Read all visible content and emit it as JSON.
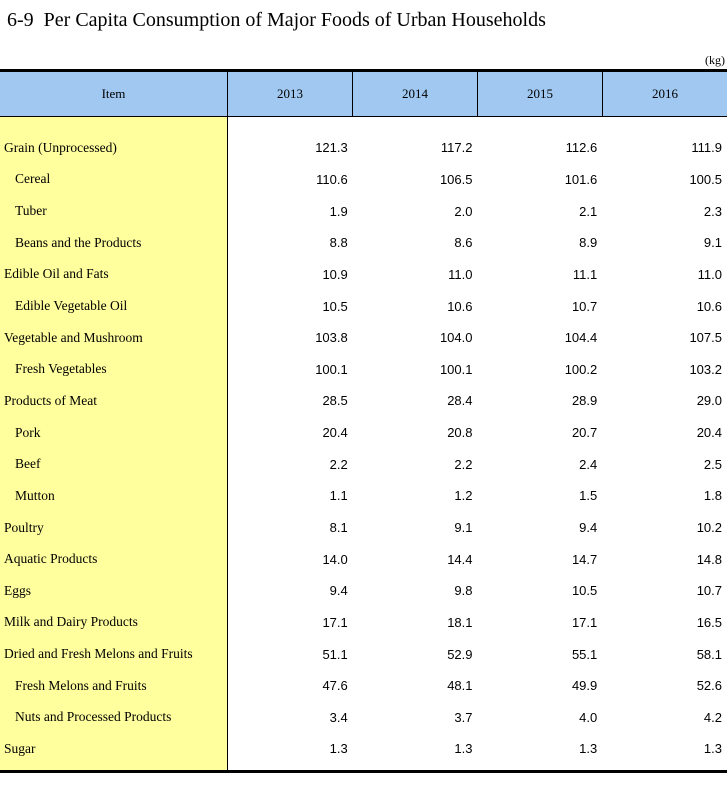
{
  "title": "6-9  Per Capita Consumption of Major Foods of Urban Households",
  "unit": "(kg)",
  "colors": {
    "header_bg": "#A0C8F0",
    "stub_bg": "#FFFF9E",
    "border": "#000000"
  },
  "table": {
    "columns": [
      "Item",
      "2013",
      "2014",
      "2015",
      "2016"
    ],
    "rows": [
      {
        "label": "Grain (Unprocessed)",
        "indent": false,
        "values": [
          "121.3",
          "117.2",
          "112.6",
          "111.9"
        ]
      },
      {
        "label": "Cereal",
        "indent": true,
        "values": [
          "110.6",
          "106.5",
          "101.6",
          "100.5"
        ]
      },
      {
        "label": "Tuber",
        "indent": true,
        "values": [
          "1.9",
          "2.0",
          "2.1",
          "2.3"
        ]
      },
      {
        "label": "Beans and the Products",
        "indent": true,
        "values": [
          "8.8",
          "8.6",
          "8.9",
          "9.1"
        ]
      },
      {
        "label": "Edible Oil and Fats",
        "indent": false,
        "values": [
          "10.9",
          "11.0",
          "11.1",
          "11.0"
        ]
      },
      {
        "label": "Edible Vegetable Oil",
        "indent": true,
        "values": [
          "10.5",
          "10.6",
          "10.7",
          "10.6"
        ]
      },
      {
        "label": "Vegetable and Mushroom",
        "indent": false,
        "values": [
          "103.8",
          "104.0",
          "104.4",
          "107.5"
        ]
      },
      {
        "label": "Fresh Vegetables",
        "indent": true,
        "values": [
          "100.1",
          "100.1",
          "100.2",
          "103.2"
        ]
      },
      {
        "label": "Products of Meat",
        "indent": false,
        "values": [
          "28.5",
          "28.4",
          "28.9",
          "29.0"
        ]
      },
      {
        "label": "Pork",
        "indent": true,
        "values": [
          "20.4",
          "20.8",
          "20.7",
          "20.4"
        ]
      },
      {
        "label": "Beef",
        "indent": true,
        "values": [
          "2.2",
          "2.2",
          "2.4",
          "2.5"
        ]
      },
      {
        "label": "Mutton",
        "indent": true,
        "values": [
          "1.1",
          "1.2",
          "1.5",
          "1.8"
        ]
      },
      {
        "label": "Poultry",
        "indent": false,
        "values": [
          "8.1",
          "9.1",
          "9.4",
          "10.2"
        ]
      },
      {
        "label": "Aquatic Products",
        "indent": false,
        "values": [
          "14.0",
          "14.4",
          "14.7",
          "14.8"
        ]
      },
      {
        "label": "Eggs",
        "indent": false,
        "values": [
          "9.4",
          "9.8",
          "10.5",
          "10.7"
        ]
      },
      {
        "label": "Milk and Dairy Products",
        "indent": false,
        "values": [
          "17.1",
          "18.1",
          "17.1",
          "16.5"
        ]
      },
      {
        "label": "Dried and Fresh Melons and Fruits",
        "indent": false,
        "values": [
          "51.1",
          "52.9",
          "55.1",
          "58.1"
        ]
      },
      {
        "label": "Fresh Melons and Fruits",
        "indent": true,
        "values": [
          "47.6",
          "48.1",
          "49.9",
          "52.6"
        ]
      },
      {
        "label": "Nuts and Processed Products",
        "indent": true,
        "values": [
          "3.4",
          "3.7",
          "4.0",
          "4.2"
        ]
      },
      {
        "label": "Sugar",
        "indent": false,
        "values": [
          "1.3",
          "1.3",
          "1.3",
          "1.3"
        ]
      }
    ]
  }
}
